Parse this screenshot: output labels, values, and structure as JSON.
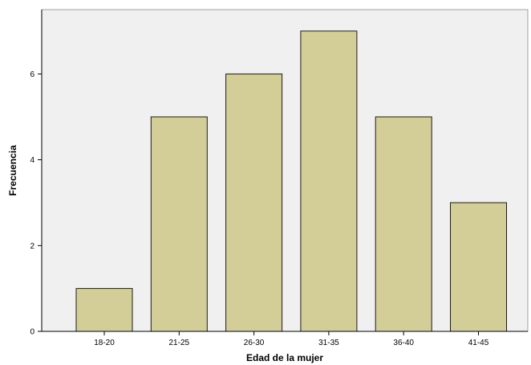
{
  "chart_data": {
    "type": "bar",
    "categories": [
      "18-20",
      "21-25",
      "26-30",
      "31-35",
      "36-40",
      "41-45"
    ],
    "values": [
      1,
      5,
      6,
      7,
      5,
      3
    ],
    "title": "",
    "xlabel": "Edad de la mujer",
    "ylabel": "Frecuencia",
    "ylim": [
      0,
      7.5
    ],
    "yticks": [
      0,
      2,
      4,
      6
    ],
    "grid": false,
    "colors": {
      "plot_background": "#f0f0f0",
      "bar_fill": "#d3ce98",
      "bar_stroke": "#1a1a1a",
      "axis": "#000000"
    }
  }
}
